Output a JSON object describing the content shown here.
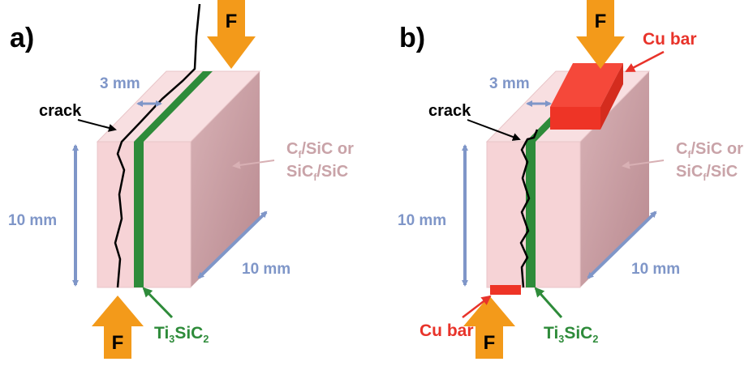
{
  "panels": [
    {
      "label": "a)",
      "force_top": "F",
      "force_bottom": "F",
      "thickness": "3 mm",
      "crack": "crack",
      "height": "10 mm",
      "depth": "10 mm",
      "material": {
        "line1": [
          "C",
          "f",
          "/SiC or"
        ],
        "line2": [
          "SiC",
          "f",
          "/SiC"
        ]
      },
      "interlayer": [
        "Ti",
        "3",
        "SiC",
        "2"
      ]
    },
    {
      "label": "b)",
      "force_top": "F",
      "force_bottom": "F",
      "thickness": "3 mm",
      "crack": "crack",
      "height": "10 mm",
      "depth": "10 mm",
      "material": {
        "line1": [
          "C",
          "f",
          "/SiC or"
        ],
        "line2": [
          "SiC",
          "f",
          "/SiC"
        ]
      },
      "interlayer": [
        "Ti",
        "3",
        "SiC",
        "2"
      ],
      "cu_bar_top": "Cu bar",
      "cu_bar_bottom": "Cu bar"
    }
  ]
}
